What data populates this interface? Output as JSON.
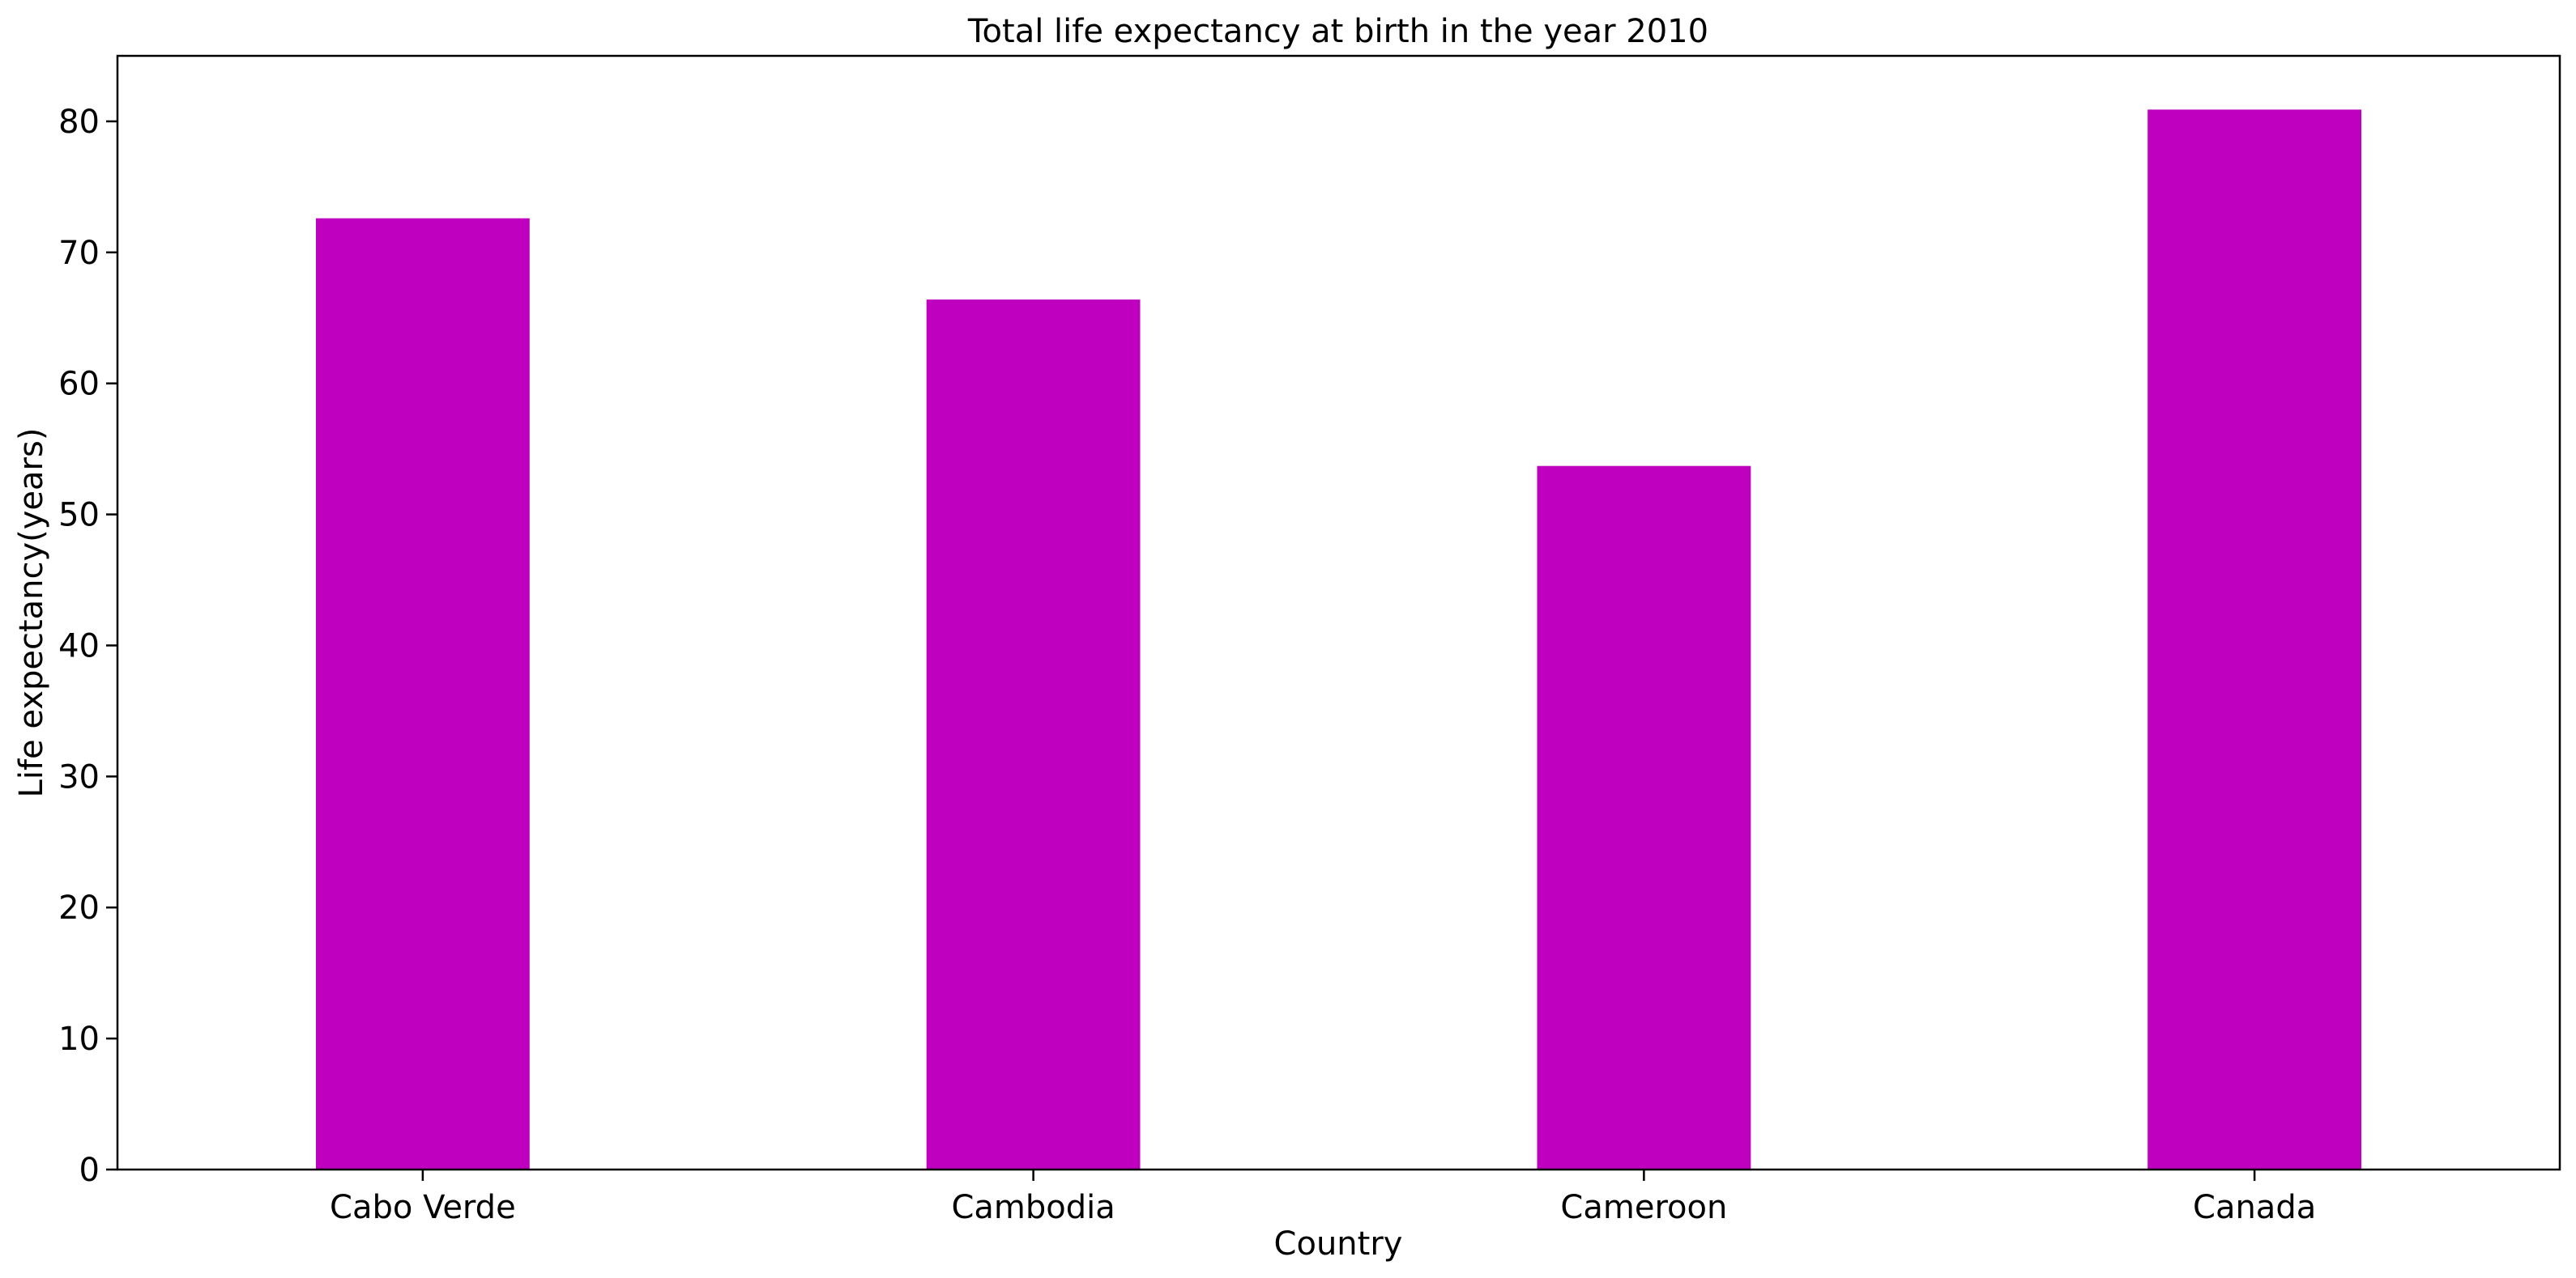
{
  "chart_data": {
    "type": "bar",
    "title": "Total life expectancy at birth in the year 2010",
    "xlabel": "Country",
    "ylabel": "Life expectancy(years)",
    "categories": [
      "Cabo Verde",
      "Cambodia",
      "Cameroon",
      "Canada"
    ],
    "values": [
      72.6,
      66.4,
      53.7,
      80.9
    ],
    "ylim": [
      0,
      85
    ],
    "yticks": [
      0,
      10,
      20,
      30,
      40,
      50,
      60,
      70,
      80
    ],
    "bar_color": "#bf00bf",
    "grid": false,
    "legend": "none"
  }
}
